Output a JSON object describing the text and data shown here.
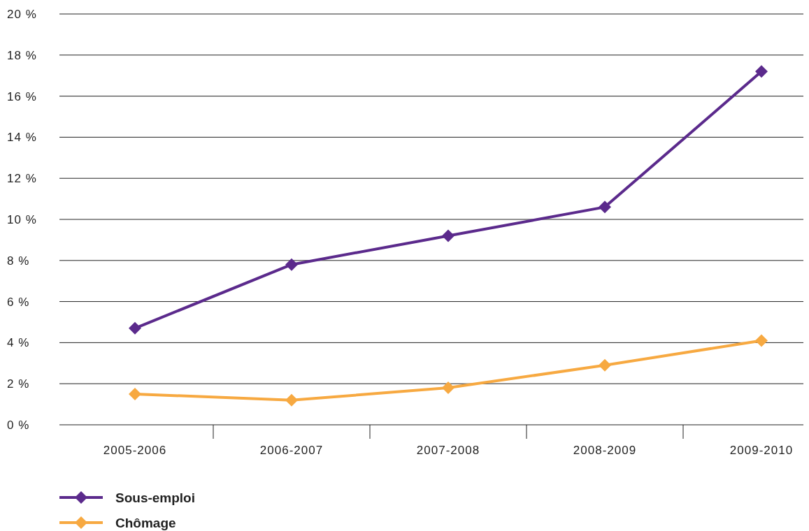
{
  "chart_data": {
    "type": "line",
    "categories": [
      "2005-2006",
      "2006-2007",
      "2007-2008",
      "2008-2009",
      "2009-2010"
    ],
    "series": [
      {
        "name": "Sous-emploi",
        "color": "#5b2a8c",
        "values": [
          4.7,
          7.8,
          9.2,
          10.6,
          17.2
        ]
      },
      {
        "name": "Chômage",
        "color": "#f7a941",
        "values": [
          1.5,
          1.2,
          1.8,
          2.9,
          4.1
        ]
      }
    ],
    "ylim": [
      0,
      20
    ],
    "yticks": [
      {
        "value": 0,
        "label": "0 %"
      },
      {
        "value": 2,
        "label": "2 %"
      },
      {
        "value": 4,
        "label": "4 %"
      },
      {
        "value": 6,
        "label": "6 %"
      },
      {
        "value": 8,
        "label": "8 %"
      },
      {
        "value": 10,
        "label": "10 %"
      },
      {
        "value": 12,
        "label": "12 %"
      },
      {
        "value": 14,
        "label": "14 %"
      },
      {
        "value": 16,
        "label": "16 %"
      },
      {
        "value": 18,
        "label": "18 %"
      },
      {
        "value": 20,
        "label": "20 %"
      }
    ],
    "grid": "y",
    "legend": "bottom left",
    "marker": "diamond",
    "line_style": "solid"
  }
}
